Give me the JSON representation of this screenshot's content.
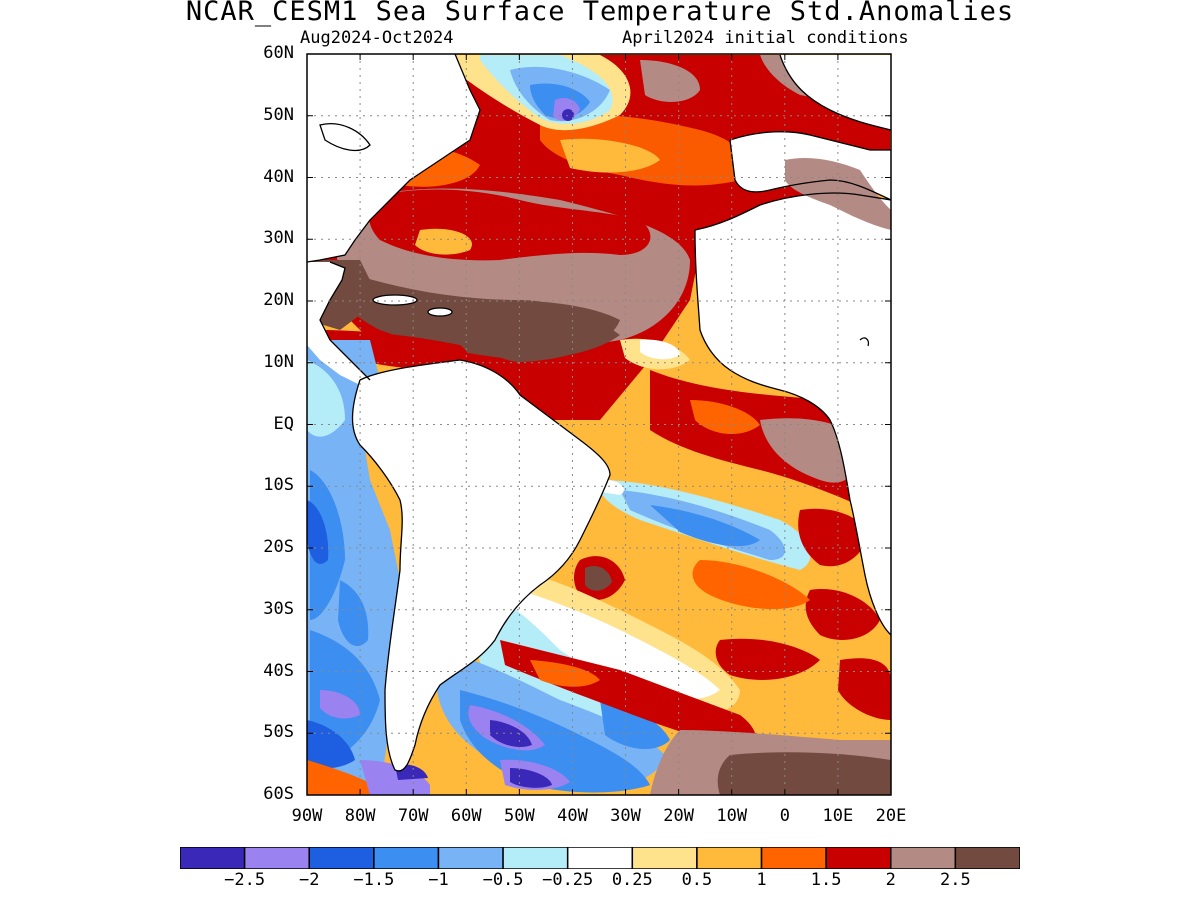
{
  "title": "NCAR_CESM1 Sea Surface Temperature Std.Anomalies",
  "subtitle_left": "Aug2024-Oct2024",
  "subtitle_right": "April2024 initial conditions",
  "lat_labels": [
    "60N",
    "50N",
    "40N",
    "30N",
    "20N",
    "10N",
    "EQ",
    "10S",
    "20S",
    "30S",
    "40S",
    "50S",
    "60S"
  ],
  "lon_labels": [
    "90W",
    "80W",
    "70W",
    "60W",
    "50W",
    "40W",
    "30W",
    "20W",
    "10W",
    "0",
    "10E",
    "20E"
  ],
  "colorbar": {
    "colors": [
      "#3a28b8",
      "#9a82f0",
      "#1e5ee0",
      "#3c8ef0",
      "#78b4f5",
      "#b4ecf8",
      "#ffffff",
      "#ffe28c",
      "#ffba3c",
      "#ff6400",
      "#c80000",
      "#b48a84",
      "#734a3f"
    ],
    "labels": [
      "-2.5",
      "-2",
      "-1.5",
      "-1",
      "-0.5",
      "-0.25",
      "0.25",
      "0.5",
      "1",
      "1.5",
      "2",
      "2.5"
    ]
  }
}
